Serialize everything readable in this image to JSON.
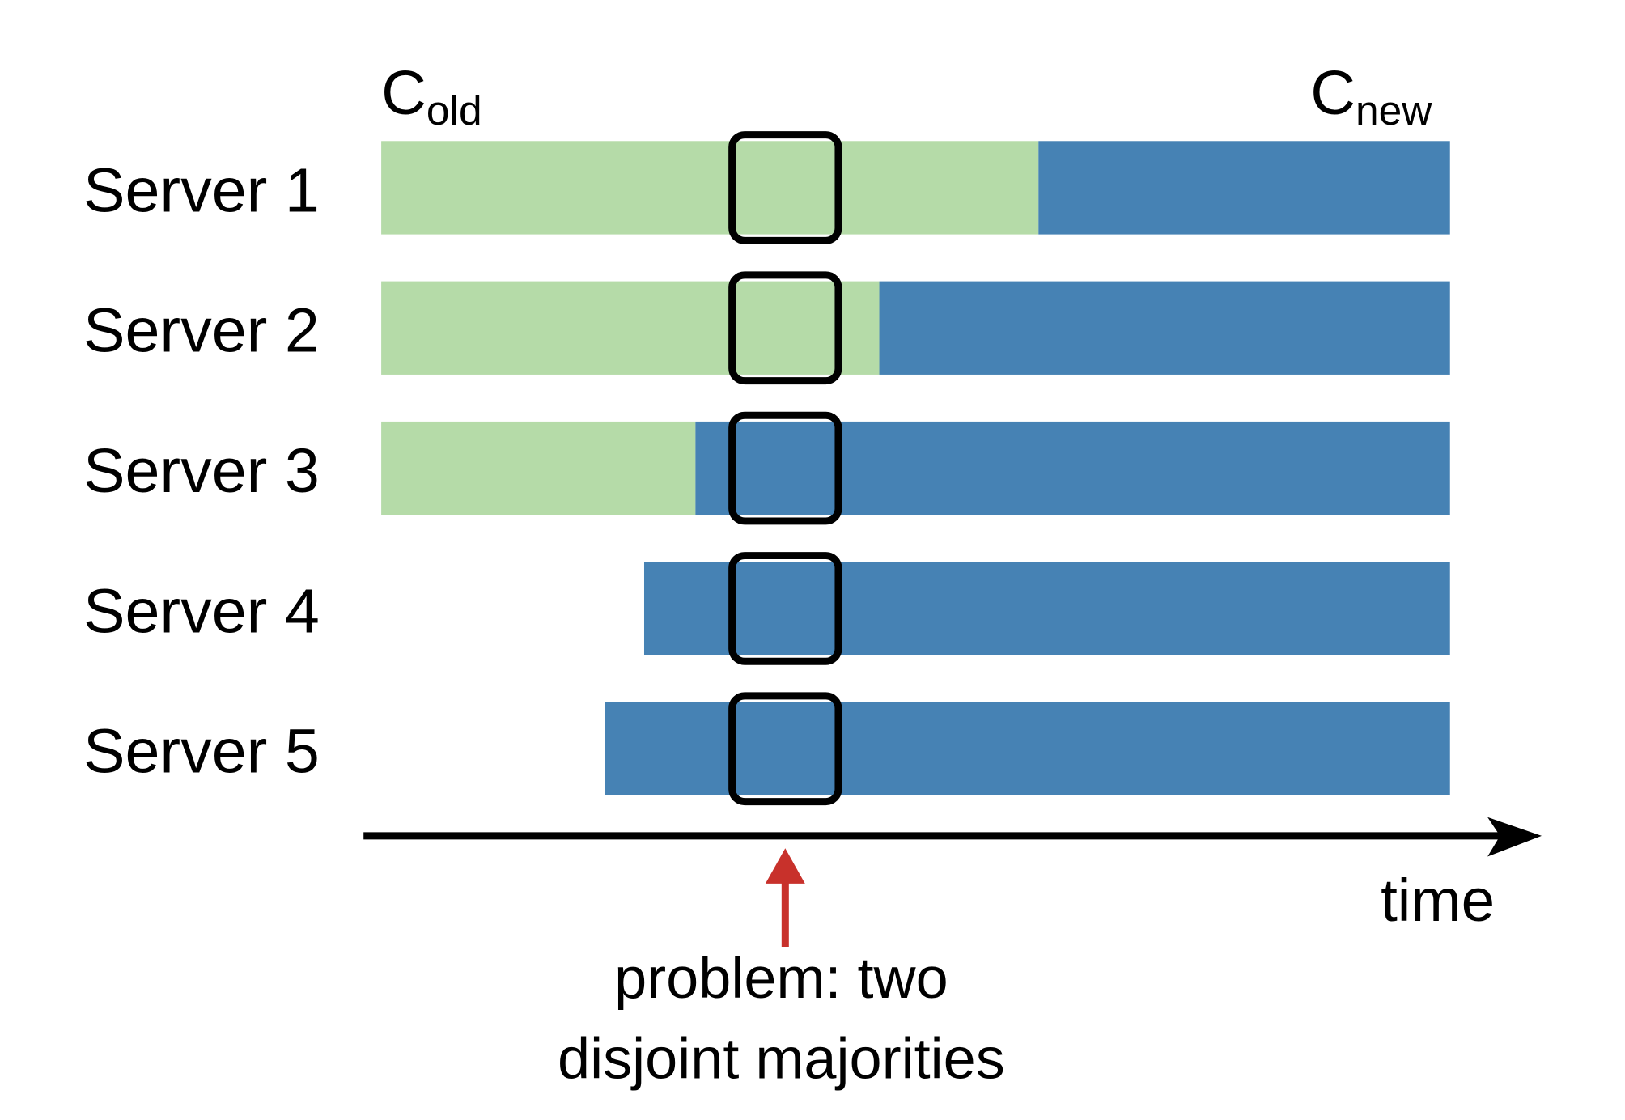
{
  "labels": {
    "c_old": "C",
    "c_old_sub": "old",
    "c_new": "C",
    "c_new_sub": "new",
    "time": "time",
    "problem_line1": "problem: two",
    "problem_line2": "disjoint majorities"
  },
  "colors": {
    "old": "#b5dba8",
    "new": "#4682b4",
    "highlight": "#000000",
    "problem_arrow": "#c8312b"
  },
  "servers": [
    {
      "name": "Server 1",
      "old_until": 0.615,
      "present_from": 0,
      "highlight_state": "old"
    },
    {
      "name": "Server 2",
      "old_until": 0.466,
      "present_from": 0,
      "highlight_state": "old"
    },
    {
      "name": "Server 3",
      "old_until": 0.294,
      "present_from": 0,
      "highlight_state": "new"
    },
    {
      "name": "Server 4",
      "old_until": null,
      "present_from": 0.246,
      "highlight_state": "new"
    },
    {
      "name": "Server 5",
      "old_until": null,
      "present_from": 0.209,
      "highlight_state": "new"
    }
  ],
  "problem_time": 0.378
}
